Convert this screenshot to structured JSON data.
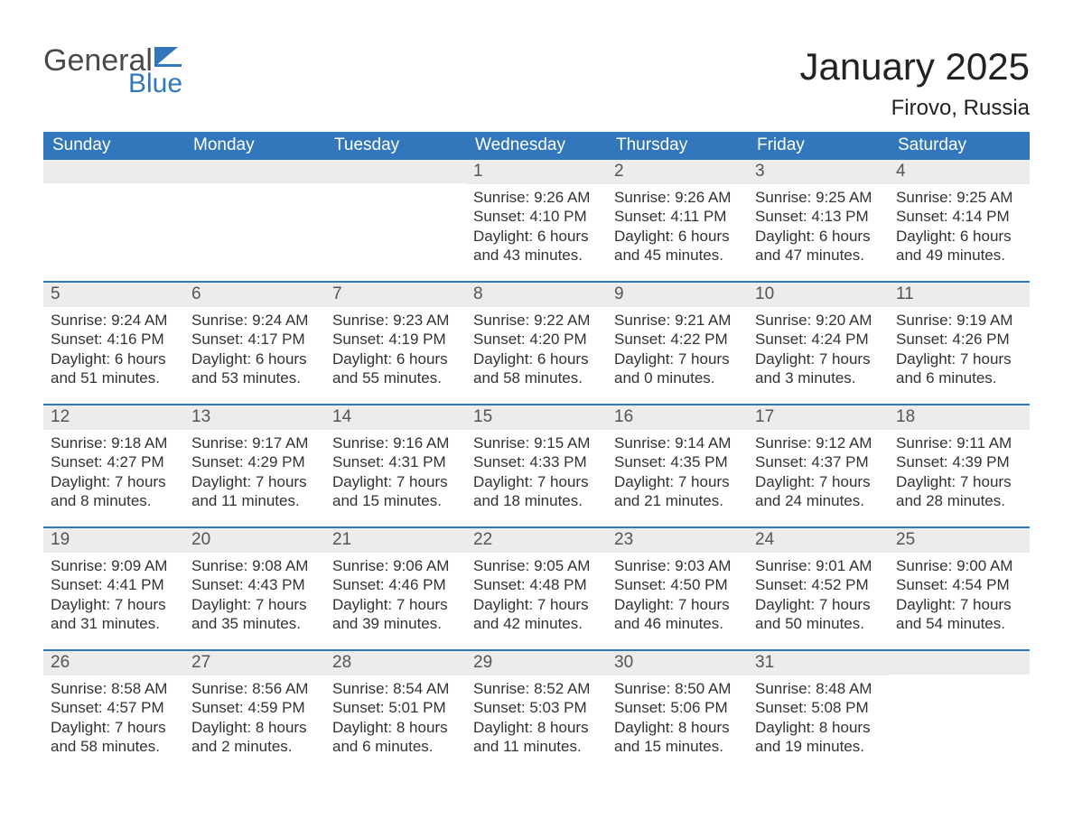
{
  "logo": {
    "text1": "General",
    "text2": "Blue",
    "flag_color": "#3277bb"
  },
  "title": "January 2025",
  "location": "Firovo, Russia",
  "colors": {
    "header_bg": "#3277bb",
    "header_text": "#ffffff",
    "daynum_bg": "#ececec",
    "daynum_text": "#555555",
    "body_text": "#333333",
    "row_border": "#3277bb",
    "page_bg": "#ffffff"
  },
  "fonts": {
    "title_pt": 42,
    "location_pt": 24,
    "weekday_pt": 19,
    "daynum_pt": 19,
    "body_pt": 17
  },
  "weekdays": [
    "Sunday",
    "Monday",
    "Tuesday",
    "Wednesday",
    "Thursday",
    "Friday",
    "Saturday"
  ],
  "weeks": [
    [
      {
        "num": "",
        "lines": []
      },
      {
        "num": "",
        "lines": []
      },
      {
        "num": "",
        "lines": []
      },
      {
        "num": "1",
        "lines": [
          "Sunrise: 9:26 AM",
          "Sunset: 4:10 PM",
          "Daylight: 6 hours and 43 minutes."
        ]
      },
      {
        "num": "2",
        "lines": [
          "Sunrise: 9:26 AM",
          "Sunset: 4:11 PM",
          "Daylight: 6 hours and 45 minutes."
        ]
      },
      {
        "num": "3",
        "lines": [
          "Sunrise: 9:25 AM",
          "Sunset: 4:13 PM",
          "Daylight: 6 hours and 47 minutes."
        ]
      },
      {
        "num": "4",
        "lines": [
          "Sunrise: 9:25 AM",
          "Sunset: 4:14 PM",
          "Daylight: 6 hours and 49 minutes."
        ]
      }
    ],
    [
      {
        "num": "5",
        "lines": [
          "Sunrise: 9:24 AM",
          "Sunset: 4:16 PM",
          "Daylight: 6 hours and 51 minutes."
        ]
      },
      {
        "num": "6",
        "lines": [
          "Sunrise: 9:24 AM",
          "Sunset: 4:17 PM",
          "Daylight: 6 hours and 53 minutes."
        ]
      },
      {
        "num": "7",
        "lines": [
          "Sunrise: 9:23 AM",
          "Sunset: 4:19 PM",
          "Daylight: 6 hours and 55 minutes."
        ]
      },
      {
        "num": "8",
        "lines": [
          "Sunrise: 9:22 AM",
          "Sunset: 4:20 PM",
          "Daylight: 6 hours and 58 minutes."
        ]
      },
      {
        "num": "9",
        "lines": [
          "Sunrise: 9:21 AM",
          "Sunset: 4:22 PM",
          "Daylight: 7 hours and 0 minutes."
        ]
      },
      {
        "num": "10",
        "lines": [
          "Sunrise: 9:20 AM",
          "Sunset: 4:24 PM",
          "Daylight: 7 hours and 3 minutes."
        ]
      },
      {
        "num": "11",
        "lines": [
          "Sunrise: 9:19 AM",
          "Sunset: 4:26 PM",
          "Daylight: 7 hours and 6 minutes."
        ]
      }
    ],
    [
      {
        "num": "12",
        "lines": [
          "Sunrise: 9:18 AM",
          "Sunset: 4:27 PM",
          "Daylight: 7 hours and 8 minutes."
        ]
      },
      {
        "num": "13",
        "lines": [
          "Sunrise: 9:17 AM",
          "Sunset: 4:29 PM",
          "Daylight: 7 hours and 11 minutes."
        ]
      },
      {
        "num": "14",
        "lines": [
          "Sunrise: 9:16 AM",
          "Sunset: 4:31 PM",
          "Daylight: 7 hours and 15 minutes."
        ]
      },
      {
        "num": "15",
        "lines": [
          "Sunrise: 9:15 AM",
          "Sunset: 4:33 PM",
          "Daylight: 7 hours and 18 minutes."
        ]
      },
      {
        "num": "16",
        "lines": [
          "Sunrise: 9:14 AM",
          "Sunset: 4:35 PM",
          "Daylight: 7 hours and 21 minutes."
        ]
      },
      {
        "num": "17",
        "lines": [
          "Sunrise: 9:12 AM",
          "Sunset: 4:37 PM",
          "Daylight: 7 hours and 24 minutes."
        ]
      },
      {
        "num": "18",
        "lines": [
          "Sunrise: 9:11 AM",
          "Sunset: 4:39 PM",
          "Daylight: 7 hours and 28 minutes."
        ]
      }
    ],
    [
      {
        "num": "19",
        "lines": [
          "Sunrise: 9:09 AM",
          "Sunset: 4:41 PM",
          "Daylight: 7 hours and 31 minutes."
        ]
      },
      {
        "num": "20",
        "lines": [
          "Sunrise: 9:08 AM",
          "Sunset: 4:43 PM",
          "Daylight: 7 hours and 35 minutes."
        ]
      },
      {
        "num": "21",
        "lines": [
          "Sunrise: 9:06 AM",
          "Sunset: 4:46 PM",
          "Daylight: 7 hours and 39 minutes."
        ]
      },
      {
        "num": "22",
        "lines": [
          "Sunrise: 9:05 AM",
          "Sunset: 4:48 PM",
          "Daylight: 7 hours and 42 minutes."
        ]
      },
      {
        "num": "23",
        "lines": [
          "Sunrise: 9:03 AM",
          "Sunset: 4:50 PM",
          "Daylight: 7 hours and 46 minutes."
        ]
      },
      {
        "num": "24",
        "lines": [
          "Sunrise: 9:01 AM",
          "Sunset: 4:52 PM",
          "Daylight: 7 hours and 50 minutes."
        ]
      },
      {
        "num": "25",
        "lines": [
          "Sunrise: 9:00 AM",
          "Sunset: 4:54 PM",
          "Daylight: 7 hours and 54 minutes."
        ]
      }
    ],
    [
      {
        "num": "26",
        "lines": [
          "Sunrise: 8:58 AM",
          "Sunset: 4:57 PM",
          "Daylight: 7 hours and 58 minutes."
        ]
      },
      {
        "num": "27",
        "lines": [
          "Sunrise: 8:56 AM",
          "Sunset: 4:59 PM",
          "Daylight: 8 hours and 2 minutes."
        ]
      },
      {
        "num": "28",
        "lines": [
          "Sunrise: 8:54 AM",
          "Sunset: 5:01 PM",
          "Daylight: 8 hours and 6 minutes."
        ]
      },
      {
        "num": "29",
        "lines": [
          "Sunrise: 8:52 AM",
          "Sunset: 5:03 PM",
          "Daylight: 8 hours and 11 minutes."
        ]
      },
      {
        "num": "30",
        "lines": [
          "Sunrise: 8:50 AM",
          "Sunset: 5:06 PM",
          "Daylight: 8 hours and 15 minutes."
        ]
      },
      {
        "num": "31",
        "lines": [
          "Sunrise: 8:48 AM",
          "Sunset: 5:08 PM",
          "Daylight: 8 hours and 19 minutes."
        ]
      },
      {
        "num": "",
        "lines": []
      }
    ]
  ]
}
